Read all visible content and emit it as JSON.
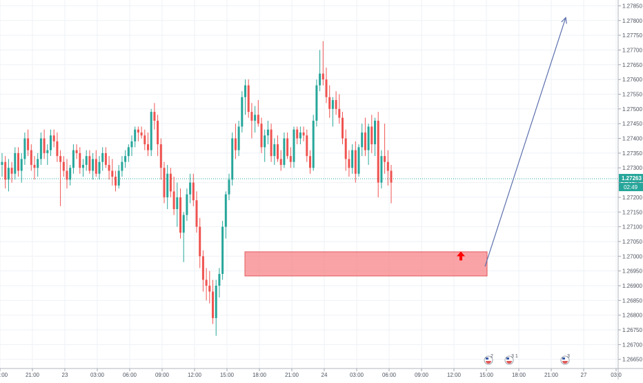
{
  "chart_data": {
    "type": "candlestick",
    "colors": {
      "up": "#26a69a",
      "down": "#ef5350",
      "grid": "#eef1f6",
      "axis_text": "#4c525e",
      "last_price_line": "#26a69a",
      "zone_fill": "#f77c80",
      "zone_border": "#e0595e",
      "arrow": "#ff0000",
      "projection": "#5b6fad",
      "badge": "#26a69a"
    },
    "y_axis": {
      "min": 1.2664,
      "max": 1.27865,
      "ticks": [
        "1.27850",
        "1.27800",
        "1.27750",
        "1.27700",
        "1.27650",
        "1.27600",
        "1.27550",
        "1.27500",
        "1.27450",
        "1.27400",
        "1.27350",
        "1.27300",
        "1.27250",
        "1.27200",
        "1.27150",
        "1.27100",
        "1.27050",
        "1.27000",
        "1.26950",
        "1.26900",
        "1.26850",
        "1.26800",
        "1.26750",
        "1.26700",
        "1.26650"
      ]
    },
    "x_axis": {
      "tick_labels": [
        ":00",
        "21:00",
        "23",
        "03:00",
        "06:00",
        "09:00",
        "12:00",
        "15:00",
        "18:00",
        "21:00",
        "24",
        "03:00",
        "06:00",
        "09:00",
        "12:00",
        "15:00",
        "18:00",
        "21:00",
        "27",
        "03:0"
      ]
    },
    "last_price": {
      "value": 1.27263,
      "label": "1.27263",
      "countdown": "02:49"
    },
    "zone": {
      "from": 1.26933,
      "to": 1.27015
    },
    "projection_target": 1.2781,
    "event_markers": [
      "2",
      "3 1",
      "3"
    ],
    "candles": [
      [
        1.2731,
        1.2735,
        1.2727,
        1.2732
      ],
      [
        1.2732,
        1.2734,
        1.2723,
        1.2726
      ],
      [
        1.2726,
        1.2733,
        1.2722,
        1.273
      ],
      [
        1.273,
        1.2732,
        1.2725,
        1.2728
      ],
      [
        1.2728,
        1.2737,
        1.2726,
        1.2735
      ],
      [
        1.2735,
        1.2737,
        1.2727,
        1.2729
      ],
      [
        1.2729,
        1.2735,
        1.2725,
        1.2733
      ],
      [
        1.2733,
        1.2742,
        1.2731,
        1.274
      ],
      [
        1.274,
        1.2743,
        1.2734,
        1.2736
      ],
      [
        1.2736,
        1.2738,
        1.2729,
        1.2731
      ],
      [
        1.2731,
        1.2734,
        1.2726,
        1.273
      ],
      [
        1.273,
        1.2735,
        1.2727,
        1.2733
      ],
      [
        1.2733,
        1.2742,
        1.2731,
        1.274
      ],
      [
        1.274,
        1.2743,
        1.2733,
        1.2735
      ],
      [
        1.2735,
        1.2738,
        1.2731,
        1.2736
      ],
      [
        1.2736,
        1.2743,
        1.2734,
        1.2741
      ],
      [
        1.2741,
        1.2743,
        1.2737,
        1.2739
      ],
      [
        1.2739,
        1.2742,
        1.2732,
        1.2734
      ],
      [
        1.2734,
        1.2736,
        1.2717,
        1.2732
      ],
      [
        1.2732,
        1.2734,
        1.2727,
        1.2729
      ],
      [
        1.2729,
        1.2733,
        1.2723,
        1.2726
      ],
      [
        1.2726,
        1.2731,
        1.2724,
        1.273
      ],
      [
        1.273,
        1.2738,
        1.2728,
        1.2736
      ],
      [
        1.2736,
        1.2738,
        1.2733,
        1.2735
      ],
      [
        1.2735,
        1.2737,
        1.2728,
        1.273
      ],
      [
        1.273,
        1.2733,
        1.2727,
        1.2731
      ],
      [
        1.2731,
        1.2736,
        1.2729,
        1.2734
      ],
      [
        1.2734,
        1.2736,
        1.2728,
        1.2729
      ],
      [
        1.2729,
        1.2735,
        1.2726,
        1.2733
      ],
      [
        1.2733,
        1.2736,
        1.2727,
        1.2728
      ],
      [
        1.2728,
        1.2734,
        1.2726,
        1.2732
      ],
      [
        1.2732,
        1.2737,
        1.2729,
        1.2735
      ],
      [
        1.2735,
        1.2737,
        1.273,
        1.2731
      ],
      [
        1.2731,
        1.2734,
        1.2726,
        1.2729
      ],
      [
        1.2729,
        1.2733,
        1.2724,
        1.2727
      ],
      [
        1.2727,
        1.2729,
        1.2722,
        1.2724
      ],
      [
        1.2724,
        1.2731,
        1.2723,
        1.2729
      ],
      [
        1.2729,
        1.2734,
        1.2727,
        1.2732
      ],
      [
        1.2732,
        1.2736,
        1.273,
        1.2734
      ],
      [
        1.2734,
        1.2738,
        1.2732,
        1.2737
      ],
      [
        1.2737,
        1.2741,
        1.2734,
        1.2739
      ],
      [
        1.2739,
        1.2744,
        1.2737,
        1.2743
      ],
      [
        1.2743,
        1.2744,
        1.2739,
        1.2742
      ],
      [
        1.2742,
        1.2744,
        1.274,
        1.2741
      ],
      [
        1.2741,
        1.2743,
        1.2736,
        1.2738
      ],
      [
        1.2738,
        1.2742,
        1.2734,
        1.2736
      ],
      [
        1.2736,
        1.275,
        1.2734,
        1.2749
      ],
      [
        1.2749,
        1.2752,
        1.2743,
        1.2746
      ],
      [
        1.2746,
        1.2748,
        1.2734,
        1.2738
      ],
      [
        1.2738,
        1.274,
        1.2726,
        1.273
      ],
      [
        1.273,
        1.2732,
        1.2718,
        1.272
      ],
      [
        1.272,
        1.2731,
        1.2716,
        1.2728
      ],
      [
        1.2728,
        1.273,
        1.272,
        1.2722
      ],
      [
        1.2722,
        1.2727,
        1.2714,
        1.2716
      ],
      [
        1.2716,
        1.2725,
        1.271,
        1.272
      ],
      [
        1.272,
        1.2723,
        1.2706,
        1.2708
      ],
      [
        1.2708,
        1.2715,
        1.2698,
        1.2714
      ],
      [
        1.2714,
        1.2723,
        1.2712,
        1.2721
      ],
      [
        1.2721,
        1.2728,
        1.2718,
        1.2725
      ],
      [
        1.2725,
        1.2728,
        1.2717,
        1.2719
      ],
      [
        1.2719,
        1.2722,
        1.2708,
        1.271
      ],
      [
        1.271,
        1.2713,
        1.2696,
        1.27
      ],
      [
        1.27,
        1.2702,
        1.2688,
        1.2692
      ],
      [
        1.2692,
        1.2696,
        1.2685,
        1.269
      ],
      [
        1.269,
        1.2695,
        1.2684,
        1.2688
      ],
      [
        1.2688,
        1.2692,
        1.2677,
        1.2679
      ],
      [
        1.2679,
        1.2692,
        1.2673,
        1.269
      ],
      [
        1.269,
        1.2696,
        1.2686,
        1.2694
      ],
      [
        1.2694,
        1.2712,
        1.2692,
        1.271
      ],
      [
        1.271,
        1.2722,
        1.2706,
        1.2721
      ],
      [
        1.2721,
        1.2728,
        1.2719,
        1.2726
      ],
      [
        1.2726,
        1.2742,
        1.2724,
        1.274
      ],
      [
        1.274,
        1.2745,
        1.2733,
        1.2736
      ],
      [
        1.2736,
        1.2746,
        1.2734,
        1.2744
      ],
      [
        1.2744,
        1.2756,
        1.2742,
        1.2754
      ],
      [
        1.2754,
        1.276,
        1.2748,
        1.2758
      ],
      [
        1.2758,
        1.276,
        1.2747,
        1.2749
      ],
      [
        1.2749,
        1.2752,
        1.274,
        1.2746
      ],
      [
        1.2746,
        1.2751,
        1.2742,
        1.2748
      ],
      [
        1.2748,
        1.2753,
        1.2744,
        1.2745
      ],
      [
        1.2745,
        1.2747,
        1.2735,
        1.2737
      ],
      [
        1.2737,
        1.2743,
        1.2732,
        1.2741
      ],
      [
        1.2741,
        1.2746,
        1.2738,
        1.2743
      ],
      [
        1.2743,
        1.2745,
        1.2732,
        1.2734
      ],
      [
        1.2734,
        1.274,
        1.2731,
        1.2738
      ],
      [
        1.2738,
        1.2741,
        1.2732,
        1.2733
      ],
      [
        1.2733,
        1.2736,
        1.2729,
        1.2731
      ],
      [
        1.2731,
        1.2742,
        1.273,
        1.274
      ],
      [
        1.274,
        1.2742,
        1.2733,
        1.2734
      ],
      [
        1.2734,
        1.2737,
        1.273,
        1.2732
      ],
      [
        1.2732,
        1.2744,
        1.273,
        1.2743
      ],
      [
        1.2743,
        1.2744,
        1.2738,
        1.274
      ],
      [
        1.274,
        1.2744,
        1.2738,
        1.2742
      ],
      [
        1.2742,
        1.2744,
        1.2739,
        1.2741
      ],
      [
        1.2741,
        1.2743,
        1.2732,
        1.2734
      ],
      [
        1.2734,
        1.2736,
        1.2728,
        1.273
      ],
      [
        1.273,
        1.2748,
        1.2729,
        1.2746
      ],
      [
        1.2746,
        1.276,
        1.2744,
        1.2758
      ],
      [
        1.2758,
        1.277,
        1.2756,
        1.2762
      ],
      [
        1.2762,
        1.2773,
        1.2758,
        1.276
      ],
      [
        1.276,
        1.2764,
        1.2752,
        1.2754
      ],
      [
        1.2754,
        1.2758,
        1.2747,
        1.275
      ],
      [
        1.275,
        1.2754,
        1.2744,
        1.2753
      ],
      [
        1.2753,
        1.2756,
        1.2748,
        1.275
      ],
      [
        1.275,
        1.2755,
        1.2745,
        1.2747
      ],
      [
        1.2747,
        1.2749,
        1.2738,
        1.274
      ],
      [
        1.274,
        1.2743,
        1.2729,
        1.2733
      ],
      [
        1.2733,
        1.2736,
        1.2727,
        1.273
      ],
      [
        1.273,
        1.2738,
        1.2728,
        1.2736
      ],
      [
        1.2736,
        1.2739,
        1.2725,
        1.2728
      ],
      [
        1.2728,
        1.2738,
        1.2727,
        1.2737
      ],
      [
        1.2737,
        1.2745,
        1.2734,
        1.2742
      ],
      [
        1.2742,
        1.2747,
        1.2734,
        1.2736
      ],
      [
        1.2736,
        1.2745,
        1.2731,
        1.2744
      ],
      [
        1.2744,
        1.2748,
        1.2735,
        1.2738
      ],
      [
        1.2738,
        1.2747,
        1.2734,
        1.2746
      ],
      [
        1.2746,
        1.2749,
        1.272,
        1.2725
      ],
      [
        1.2725,
        1.2736,
        1.2723,
        1.2734
      ],
      [
        1.2734,
        1.2745,
        1.2728,
        1.2732
      ],
      [
        1.2732,
        1.2736,
        1.2724,
        1.2729
      ],
      [
        1.2729,
        1.2731,
        1.2718,
        1.2725
      ]
    ]
  }
}
